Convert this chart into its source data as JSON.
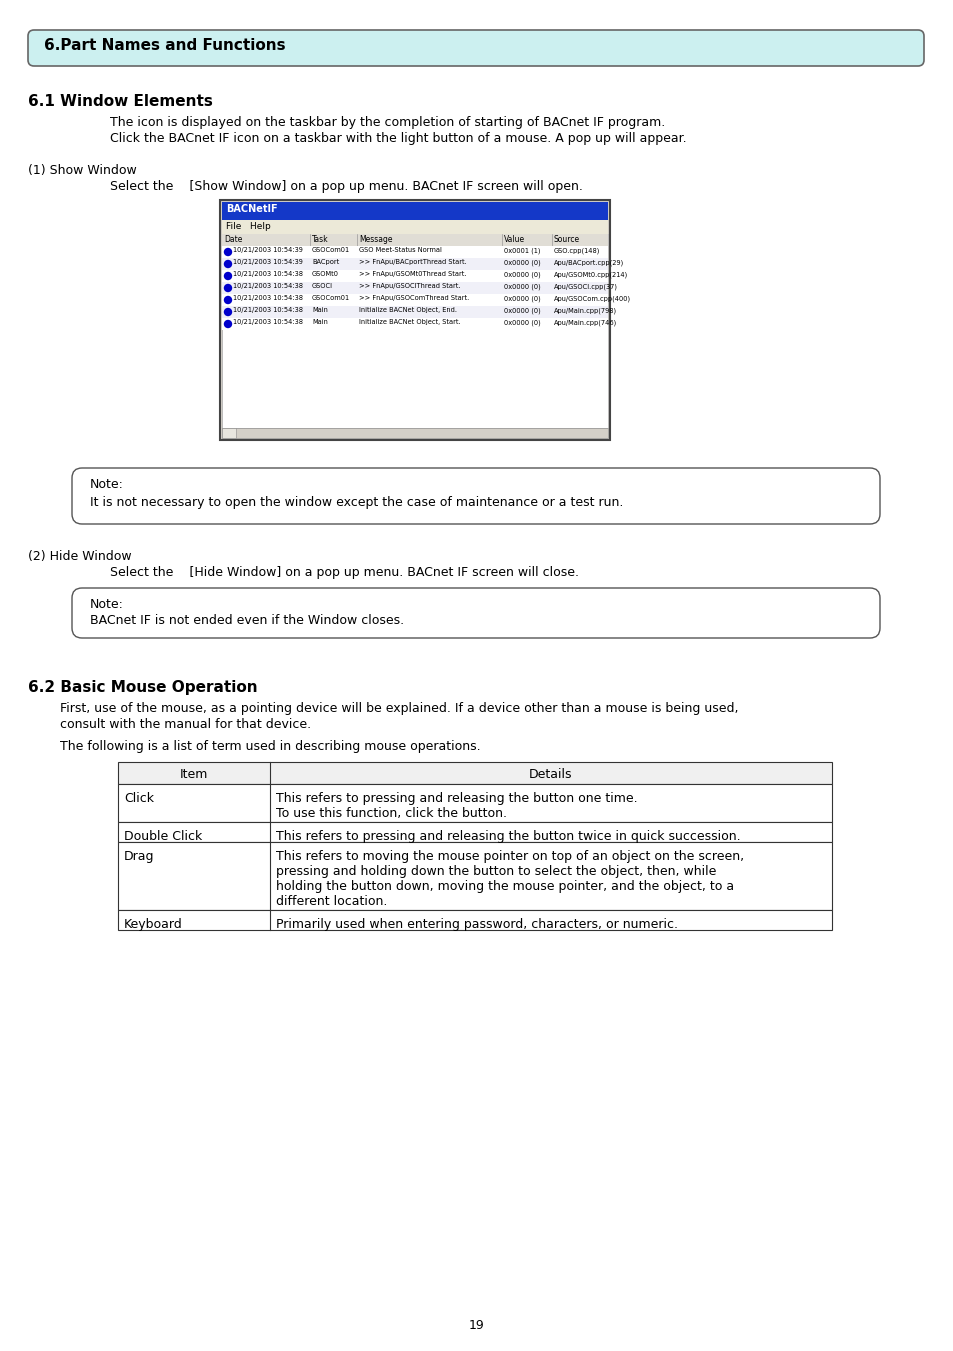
{
  "page_bg": "#ffffff",
  "header_bg": "#ccf0f0",
  "header_text": "6.Part Names and Functions",
  "section1_title": "6.1 Window Elements",
  "section1_body1": "The icon is displayed on the taskbar by the completion of starting of BACnet IF program.",
  "section1_body2": "Click the BACnet IF icon on a taskbar with the light button of a mouse. A pop up will appear.",
  "show_window_label": "(1) Show Window",
  "show_window_text": "Select the    [Show Window] on a pop up menu. BACnet IF screen will open.",
  "note1_label": "Note:",
  "note1_text": "It is not necessary to open the window except the case of maintenance or a test run.",
  "hide_window_label": "(2) Hide Window",
  "hide_window_text": "Select the    [Hide Window] on a pop up menu. BACnet IF screen will close.",
  "note2_label": "Note:",
  "note2_text": "BACnet IF is not ended even if the Window closes.",
  "section2_title": "6.2 Basic Mouse Operation",
  "section2_body1": "First, use of the mouse, as a pointing device will be explained. If a device other than a mouse is being used,",
  "section2_body2": "consult with the manual for that device.",
  "section2_body3": "The following is a list of term used in describing mouse operations.",
  "table_headers": [
    "Item",
    "Details"
  ],
  "table_rows": [
    [
      "Click",
      "This refers to pressing and releasing the button one time.\nTo use this function, click the button."
    ],
    [
      "Double Click",
      "This refers to pressing and releasing the button twice in quick succession."
    ],
    [
      "Drag",
      "This refers to moving the mouse pointer on top of an object on the screen,\npressing and holding down the button to select the object, then, while\nholding the button down, moving the mouse pointer, and the object, to a\ndifferent location."
    ],
    [
      "Keyboard",
      "Primarily used when entering password, characters, or numeric."
    ]
  ],
  "page_number": "19",
  "screenshot_title": "BACNetIF",
  "screenshot_menu": "File   Help",
  "screenshot_col_headers": [
    "Date",
    "Task",
    "Message",
    "Value",
    "Source"
  ],
  "screenshot_rows": [
    [
      "10/21/2003 10:54:39",
      "GSOCom01",
      "GSO Meet-Status Normal",
      "0x0001 (1)",
      "GSO.cpp(148)"
    ],
    [
      "10/21/2003 10:54:39",
      "BACport",
      ">> FnApu/BACportThread Start.",
      "0x0000 (0)",
      "Apu/BACport.cpp(29)"
    ],
    [
      "10/21/2003 10:54:38",
      "GSOMt0",
      ">> FnApu/GSOMt0Thread Start.",
      "0x0000 (0)",
      "Apu/GSOMt0.cpp(214)"
    ],
    [
      "10/21/2003 10:54:38",
      "GSOCI",
      ">> FnApu/GSOCIThread Start.",
      "0x0000 (0)",
      "Apu/GSOCI.cpp(37)"
    ],
    [
      "10/21/2003 10:54:38",
      "GSOCom01",
      ">> FnApu/GSOComThread Start.",
      "0x0000 (0)",
      "Apu/GSOCom.cpp(400)"
    ],
    [
      "10/21/2003 10:54:38",
      "Main",
      "Initialize BACNet Object, End.",
      "0x0000 (0)",
      "Apu/Main.cpp(798)"
    ],
    [
      "10/21/2003 10:54:38",
      "Main",
      "Initialize BACNet Object, Start.",
      "0x0000 (0)",
      "Apu/Main.cpp(746)"
    ]
  ]
}
